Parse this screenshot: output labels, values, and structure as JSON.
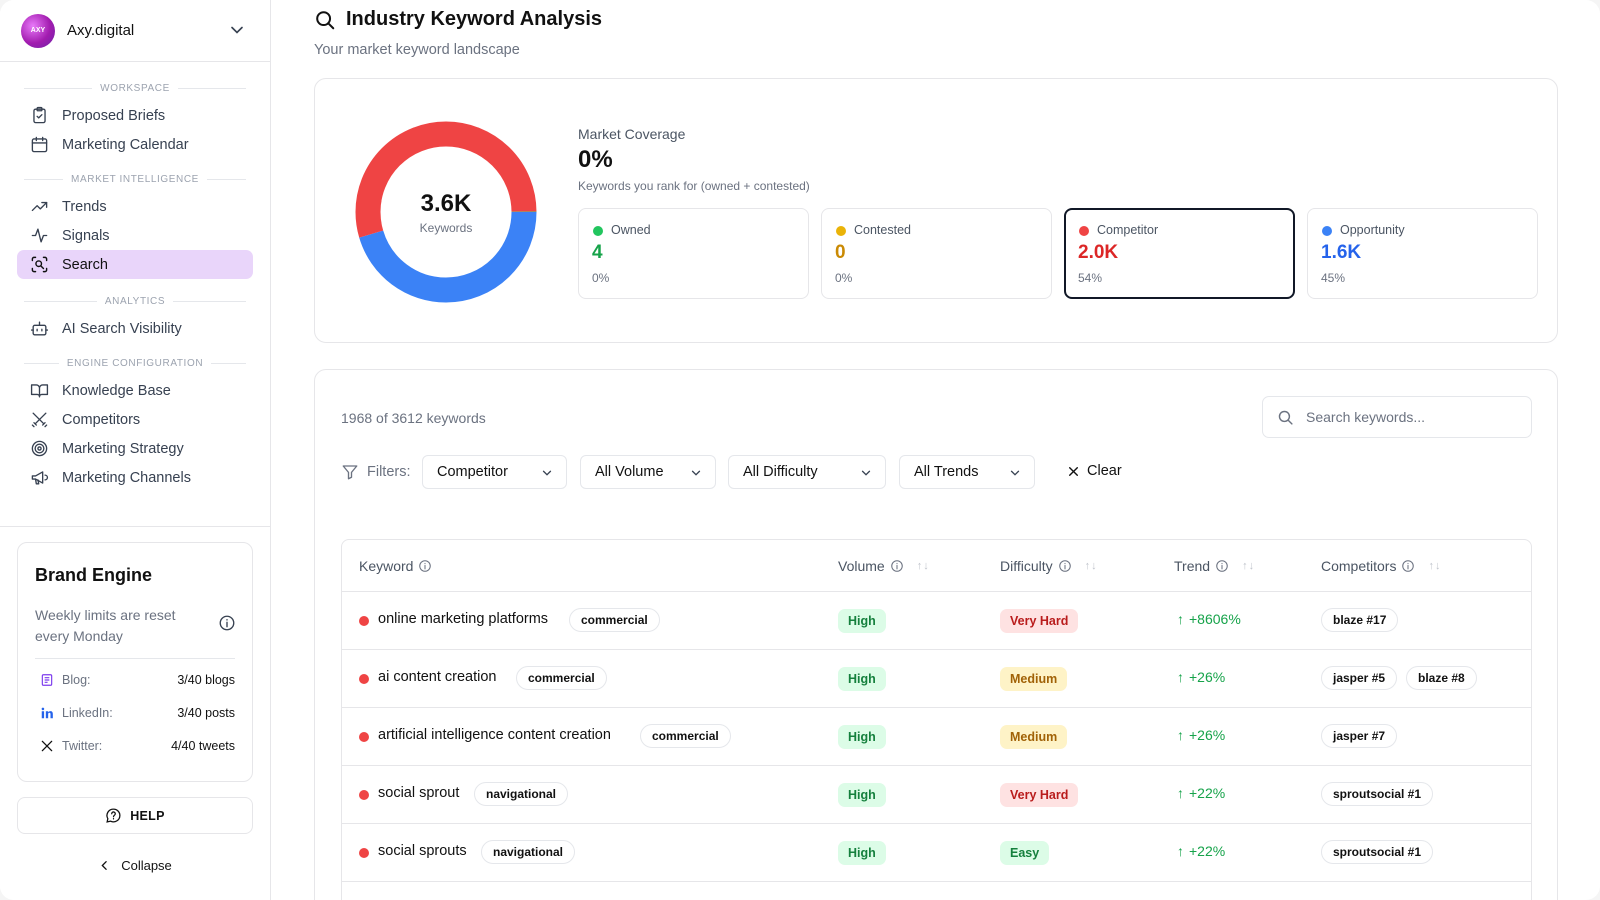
{
  "sidebar": {
    "brand_name": "Axy.digital",
    "brand_logo_text": "AXY",
    "sections": {
      "workspace": "WORKSPACE",
      "market_intelligence": "MARKET INTELLIGENCE",
      "analytics": "ANALYTICS",
      "engine_configuration": "ENGINE CONFIGURATION"
    },
    "items": {
      "proposed_briefs": "Proposed Briefs",
      "marketing_calendar": "Marketing Calendar",
      "trends": "Trends",
      "signals": "Signals",
      "search": "Search",
      "ai_search_visibility": "AI Search Visibility",
      "knowledge_base": "Knowledge Base",
      "competitors": "Competitors",
      "marketing_strategy": "Marketing Strategy",
      "marketing_channels": "Marketing Channels"
    },
    "brand_engine": {
      "title": "Brand Engine",
      "description": "Weekly limits are reset every Monday",
      "blog_label": "Blog:",
      "blog_value": "3/40 blogs",
      "linkedin_label": "LinkedIn:",
      "linkedin_value": "3/40 posts",
      "twitter_label": "Twitter:",
      "twitter_value": "4/40 tweets"
    },
    "help_label": "HELP",
    "collapse_label": "Collapse"
  },
  "header": {
    "title": "Industry Keyword Analysis",
    "subtitle": "Your market keyword landscape"
  },
  "coverage": {
    "donut_value": "3.6K",
    "donut_label": "Keywords",
    "label": "Market Coverage",
    "value": "0%",
    "description": "Keywords you rank for (owned + contested)",
    "colors": {
      "competitor": "#ef4444",
      "opportunity": "#3b82f6",
      "owned": "#22c55e",
      "contested": "#eab308"
    },
    "segments": {
      "competitor": 0.54,
      "opportunity": 0.45,
      "owned": 0.001,
      "contested": 0
    },
    "stats": {
      "owned": {
        "label": "Owned",
        "value": "4",
        "pct": "0%"
      },
      "contested": {
        "label": "Contested",
        "value": "0",
        "pct": "0%"
      },
      "competitor": {
        "label": "Competitor",
        "value": "2.0K",
        "pct": "54%"
      },
      "opportunity": {
        "label": "Opportunity",
        "value": "1.6K",
        "pct": "45%"
      }
    }
  },
  "table": {
    "count": "1968 of 3612 keywords",
    "search_placeholder": "Search keywords...",
    "filters_label": "Filters:",
    "filters": {
      "type": "Competitor",
      "volume": "All Volume",
      "difficulty": "All Difficulty",
      "trends": "All Trends"
    },
    "clear_label": "Clear",
    "columns": {
      "keyword": "Keyword",
      "volume": "Volume",
      "difficulty": "Difficulty",
      "trend": "Trend",
      "competitors": "Competitors"
    },
    "rows": [
      {
        "keyword": "online marketing platforms",
        "intent": "commercial",
        "volume": "High",
        "difficulty": "Very Hard",
        "trend": "+8606%",
        "competitors": [
          "blaze #17"
        ]
      },
      {
        "keyword": "ai content creation",
        "intent": "commercial",
        "volume": "High",
        "difficulty": "Medium",
        "trend": "+26%",
        "competitors": [
          "jasper #5",
          "blaze #8"
        ]
      },
      {
        "keyword": "artificial intelligence content creation",
        "intent": "commercial",
        "volume": "High",
        "difficulty": "Medium",
        "trend": "+26%",
        "competitors": [
          "jasper #7"
        ]
      },
      {
        "keyword": "social sprout",
        "intent": "navigational",
        "volume": "High",
        "difficulty": "Very Hard",
        "trend": "+22%",
        "competitors": [
          "sproutsocial #1"
        ]
      },
      {
        "keyword": "social sprouts",
        "intent": "navigational",
        "volume": "High",
        "difficulty": "Easy",
        "trend": "+22%",
        "competitors": [
          "sproutsocial #1"
        ]
      }
    ]
  }
}
